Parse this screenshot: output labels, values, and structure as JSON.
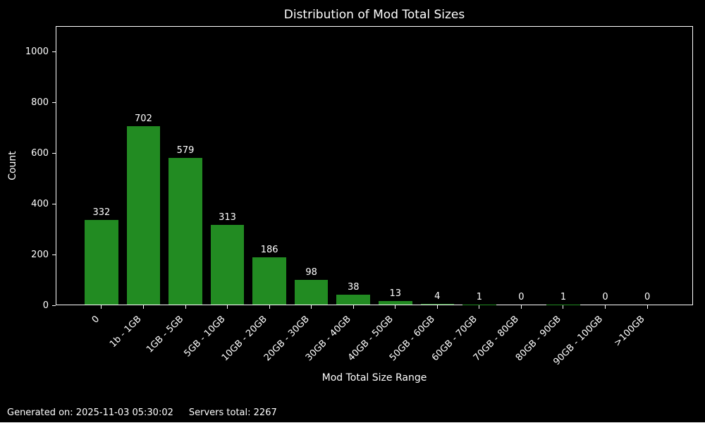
{
  "chart_data": {
    "type": "bar",
    "title": "Distribution of Mod Total Sizes",
    "xlabel": "Mod Total Size Range",
    "ylabel": "Count",
    "categories": [
      "0",
      "1b - 1GB",
      "1GB - 5GB",
      "5GB - 10GB",
      "10GB - 20GB",
      "20GB - 30GB",
      "30GB - 40GB",
      "40GB - 50GB",
      "50GB - 60GB",
      "60GB - 70GB",
      "70GB - 80GB",
      "80GB - 90GB",
      "90GB - 100GB",
      ">100GB"
    ],
    "values": [
      332,
      702,
      579,
      313,
      186,
      98,
      38,
      13,
      4,
      1,
      0,
      1,
      0,
      0
    ],
    "ylim": [
      0,
      1100
    ],
    "yticks": [
      0,
      200,
      400,
      600,
      800,
      1000
    ],
    "grid": false,
    "legend": false,
    "value_labels_shown": true,
    "x_tick_rotation_deg": 45,
    "bar_color": "#228B22",
    "background_color": "#000000",
    "text_color": "#ffffff",
    "axis_color": "#ffffff"
  },
  "footer": {
    "generated": "Generated on: 2025-11-03 05:30:02",
    "servers_total": "Servers total: 2267"
  }
}
